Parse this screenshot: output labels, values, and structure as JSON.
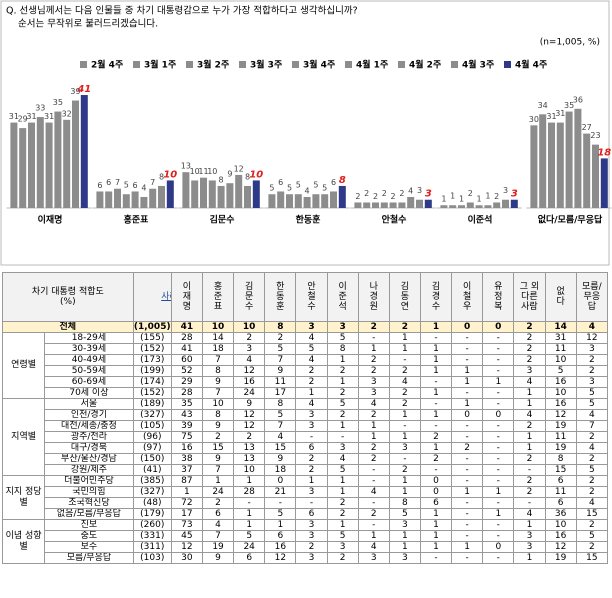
{
  "question": [
    "Q. 선생님께서는 다음 인물들 중 차기 대통령감으로 누가 가장 적합하다고 생각하십니까?",
    "순서는 무작위로 불러드리겠습니다."
  ],
  "chart_data": {
    "type": "bar",
    "note": "(n=1,005, %)",
    "categories": [
      "이재명",
      "홍준표",
      "김문수",
      "한동훈",
      "안철수",
      "이준석",
      "없다/모름/무응답"
    ],
    "ylim": [
      0,
      45
    ],
    "series": [
      {
        "name": "2월 4주",
        "color": "#8c8c8c",
        "label_color": "#444444",
        "values": [
          31,
          6,
          13,
          5,
          2,
          1,
          30
        ]
      },
      {
        "name": "3월 1주",
        "color": "#8c8c8c",
        "label_color": "#444444",
        "values": [
          29,
          6,
          10,
          6,
          2,
          1,
          34
        ]
      },
      {
        "name": "3월 2주",
        "color": "#8c8c8c",
        "label_color": "#444444",
        "values": [
          31,
          7,
          11,
          5,
          2,
          1,
          31
        ]
      },
      {
        "name": "3월 3주",
        "color": "#8c8c8c",
        "label_color": "#444444",
        "values": [
          33,
          5,
          10,
          5,
          2,
          2,
          31
        ]
      },
      {
        "name": "3월 4주",
        "color": "#8c8c8c",
        "label_color": "#444444",
        "values": [
          31,
          6,
          8,
          4,
          2,
          1,
          35
        ]
      },
      {
        "name": "4월 1주",
        "color": "#8c8c8c",
        "label_color": "#444444",
        "values": [
          35,
          4,
          9,
          5,
          2,
          1,
          36
        ]
      },
      {
        "name": "4월 2주",
        "color": "#8c8c8c",
        "label_color": "#444444",
        "values": [
          32,
          7,
          12,
          5,
          4,
          2,
          27
        ]
      },
      {
        "name": "4월 3주",
        "color": "#8c8c8c",
        "label_color": "#444444",
        "values": [
          39,
          8,
          8,
          6,
          3,
          3,
          23
        ]
      },
      {
        "name": "4월 4주",
        "color": "#2e3a87",
        "label_color": "#e02020",
        "values": [
          41,
          10,
          10,
          8,
          3,
          3,
          18
        ]
      }
    ]
  },
  "table": {
    "header": [
      "차기 대통령 적합도 (%)",
      "사례수",
      "이재명",
      "홍준표",
      "김문수",
      "한동훈",
      "안철수",
      "이준석",
      "나경원",
      "김동연",
      "김경수",
      "이철우",
      "유정복",
      "그 외 다른 사람",
      "없다",
      "모름/무응답"
    ],
    "total": {
      "label": "전체",
      "n": "(1,005)",
      "values": [
        41,
        10,
        10,
        8,
        3,
        3,
        2,
        2,
        1,
        0,
        0,
        2,
        14,
        4
      ]
    },
    "groups": [
      {
        "name": "연령별",
        "rows": [
          {
            "label": "18-29세",
            "n": "(155)",
            "values": [
              28,
              14,
              2,
              2,
              4,
              5,
              "-",
              1,
              "-",
              "-",
              "-",
              2,
              31,
              12
            ]
          },
          {
            "label": "30-39세",
            "n": "(152)",
            "values": [
              41,
              18,
              3,
              5,
              5,
              8,
              1,
              1,
              1,
              "-",
              "-",
              2,
              11,
              3
            ]
          },
          {
            "label": "40-49세",
            "n": "(173)",
            "values": [
              60,
              7,
              4,
              7,
              4,
              1,
              2,
              "-",
              1,
              "-",
              "-",
              2,
              10,
              2
            ]
          },
          {
            "label": "50-59세",
            "n": "(199)",
            "values": [
              52,
              8,
              12,
              9,
              2,
              2,
              2,
              2,
              1,
              1,
              "-",
              3,
              5,
              2
            ]
          },
          {
            "label": "60-69세",
            "n": "(174)",
            "values": [
              29,
              9,
              16,
              11,
              2,
              1,
              3,
              4,
              "-",
              1,
              1,
              4,
              16,
              3
            ]
          },
          {
            "label": "70세 이상",
            "n": "(152)",
            "values": [
              28,
              7,
              24,
              17,
              1,
              2,
              3,
              2,
              1,
              "-",
              "-",
              1,
              10,
              5
            ]
          }
        ]
      },
      {
        "name": "지역별",
        "rows": [
          {
            "label": "서울",
            "n": "(189)",
            "values": [
              35,
              10,
              9,
              8,
              4,
              5,
              4,
              2,
              "-",
              1,
              "-",
              1,
              16,
              5
            ]
          },
          {
            "label": "인천/경기",
            "n": "(327)",
            "values": [
              43,
              8,
              12,
              5,
              3,
              2,
              2,
              1,
              1,
              0,
              0,
              4,
              12,
              4
            ]
          },
          {
            "label": "대전/세종/충청",
            "n": "(105)",
            "values": [
              39,
              9,
              12,
              7,
              3,
              1,
              1,
              "-",
              "-",
              "-",
              "-",
              2,
              19,
              7
            ]
          },
          {
            "label": "광주/전라",
            "n": "(96)",
            "values": [
              75,
              2,
              2,
              4,
              "-",
              "-",
              1,
              1,
              2,
              "-",
              "-",
              1,
              11,
              2
            ]
          },
          {
            "label": "대구/경북",
            "n": "(97)",
            "values": [
              16,
              15,
              13,
              15,
              6,
              3,
              2,
              3,
              1,
              2,
              "-",
              1,
              19,
              4
            ]
          },
          {
            "label": "부산/울산/경남",
            "n": "(150)",
            "values": [
              38,
              9,
              13,
              9,
              2,
              4,
              2,
              "-",
              2,
              "-",
              "-",
              2,
              8,
              2
            ]
          },
          {
            "label": "강원/제주",
            "n": "(41)",
            "values": [
              37,
              7,
              10,
              18,
              2,
              5,
              "-",
              2,
              "-",
              "-",
              "-",
              "-",
              15,
              5
            ]
          }
        ]
      },
      {
        "name": "지지 정당별",
        "rows": [
          {
            "label": "더불어민주당",
            "n": "(385)",
            "values": [
              87,
              1,
              1,
              0,
              1,
              1,
              "-",
              1,
              0,
              "-",
              "-",
              2,
              6,
              2
            ]
          },
          {
            "label": "국민의힘",
            "n": "(327)",
            "values": [
              1,
              24,
              28,
              21,
              3,
              1,
              4,
              1,
              0,
              1,
              1,
              2,
              11,
              2
            ]
          },
          {
            "label": "조국혁신당",
            "n": "(48)",
            "values": [
              72,
              2,
              "-",
              "-",
              "-",
              2,
              "-",
              8,
              6,
              "-",
              "-",
              "-",
              6,
              4
            ]
          },
          {
            "label": "없음/모름/무응답",
            "n": "(179)",
            "values": [
              17,
              6,
              1,
              5,
              6,
              2,
              2,
              5,
              1,
              "-",
              1,
              4,
              36,
              15
            ]
          }
        ]
      },
      {
        "name": "이념 성향별",
        "rows": [
          {
            "label": "진보",
            "n": "(260)",
            "values": [
              73,
              4,
              1,
              1,
              3,
              1,
              "-",
              3,
              1,
              "-",
              "-",
              1,
              10,
              2
            ]
          },
          {
            "label": "중도",
            "n": "(331)",
            "values": [
              45,
              7,
              5,
              6,
              3,
              5,
              1,
              1,
              1,
              "-",
              "-",
              3,
              16,
              5
            ]
          },
          {
            "label": "보수",
            "n": "(311)",
            "values": [
              12,
              19,
              24,
              16,
              2,
              3,
              4,
              1,
              1,
              1,
              0,
              3,
              12,
              2
            ]
          },
          {
            "label": "모름/무응답",
            "n": "(103)",
            "values": [
              30,
              9,
              6,
              12,
              3,
              2,
              3,
              3,
              "-",
              "-",
              "-",
              1,
              19,
              15
            ]
          }
        ]
      }
    ]
  }
}
